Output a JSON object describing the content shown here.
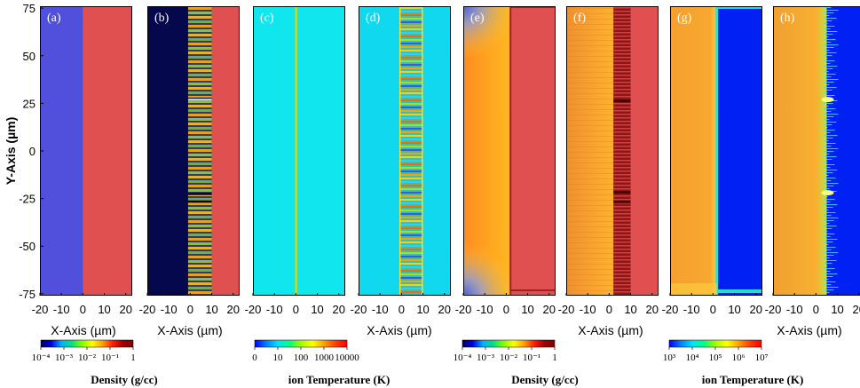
{
  "chart_data": {
    "type": "heatmap",
    "xlabel": "X-Axis (µm)",
    "ylabel": "Y-Axis (µm)",
    "xlim": [
      -20,
      23
    ],
    "ylim": [
      -76,
      76
    ],
    "x_ticks": [
      "-20",
      "-10",
      "0",
      "10",
      "20"
    ],
    "x_tick_values": [
      -20,
      -10,
      0,
      10,
      20
    ],
    "y_ticks": [
      "75",
      "50",
      "25",
      "0",
      "-25",
      "-50",
      "-75"
    ],
    "y_tick_values": [
      75,
      50,
      25,
      0,
      -25,
      -50,
      -75
    ],
    "panels": [
      {
        "label": "(a)",
        "quantity": "Density",
        "structure": "uniform target",
        "vacuum_color": "#5050dc",
        "target_color": "#e05050",
        "target_x": [
          0,
          23
        ],
        "grating": false
      },
      {
        "label": "(b)",
        "quantity": "Density",
        "structure": "grating layer",
        "vacuum_color": "#06084e",
        "target_color": "#e05050",
        "target_x": [
          0,
          23
        ],
        "grating": true,
        "grating_x": [
          0,
          10
        ]
      },
      {
        "label": "(c)",
        "quantity": "ion Temperature",
        "structure": "uniform target",
        "background_color": "#10e6ee",
        "interface_x": 0
      },
      {
        "label": "(d)",
        "quantity": "ion Temperature",
        "structure": "grating layer",
        "background_color": "#10d8ee",
        "grating": true,
        "grating_x": [
          0,
          10
        ]
      },
      {
        "label": "(e)",
        "quantity": "Density",
        "structure": "uniform target, expanded plasma",
        "target_color": "#e05050",
        "target_x": [
          2,
          23
        ]
      },
      {
        "label": "(f)",
        "quantity": "Density",
        "structure": "grating layer, expanded plasma",
        "target_color": "#e05050",
        "target_x": [
          2,
          23
        ],
        "grating_x": [
          2,
          10
        ]
      },
      {
        "label": "(g)",
        "quantity": "ion Temperature",
        "structure": "uniform target, heated",
        "hot_color": "#f4a030",
        "cold_color": "#0020f4",
        "interface_x": 2
      },
      {
        "label": "(h)",
        "quantity": "ion Temperature",
        "structure": "grating layer, heated",
        "hot_color": "#f4a030",
        "cold_color": "#0020f4",
        "interface_x": 5
      }
    ],
    "colorbars": [
      {
        "title": "Density  (g/cc)",
        "ticks": [
          "10⁻⁴",
          "10⁻³",
          "10⁻²",
          "10⁻¹",
          "1"
        ],
        "tick_values": [
          0.0001,
          0.001,
          0.01,
          0.1,
          1
        ],
        "colormap": [
          "#000060",
          "#0000e0",
          "#00b0ff",
          "#00e080",
          "#80ff00",
          "#ffff00",
          "#ffa000",
          "#ff2000",
          "#a00000",
          "#800000"
        ]
      },
      {
        "title": "ion Temperature  (K)",
        "ticks": [
          "0",
          "10",
          "100",
          "1000",
          "10000"
        ],
        "tick_values": [
          0,
          10,
          100,
          1000,
          10000
        ],
        "colormap": [
          "#0000ff",
          "#0080ff",
          "#00e0ff",
          "#00ff80",
          "#a0ff00",
          "#ffff00",
          "#ffa000",
          "#ff4000",
          "#ff0000"
        ]
      },
      {
        "title": "Density  (g/cc)",
        "ticks": [
          "10⁻⁴",
          "10⁻³",
          "10⁻²",
          "10⁻¹",
          "1"
        ],
        "tick_values": [
          0.0001,
          0.001,
          0.01,
          0.1,
          1
        ],
        "colormap": [
          "#000060",
          "#0000e0",
          "#00b0ff",
          "#00e080",
          "#80ff00",
          "#ffff00",
          "#ffa000",
          "#ff2000",
          "#a00000",
          "#800000"
        ]
      },
      {
        "title": "ion Temperature  (K)",
        "ticks": [
          "10³",
          "10⁴",
          "10⁵",
          "10⁶",
          "10⁷"
        ],
        "tick_values": [
          1000,
          10000,
          100000,
          1000000,
          10000000
        ],
        "colormap": [
          "#0000ff",
          "#0080ff",
          "#00e0ff",
          "#00ff80",
          "#a0ff00",
          "#ffff00",
          "#ffa000",
          "#ff4000",
          "#ff0000"
        ]
      }
    ]
  }
}
